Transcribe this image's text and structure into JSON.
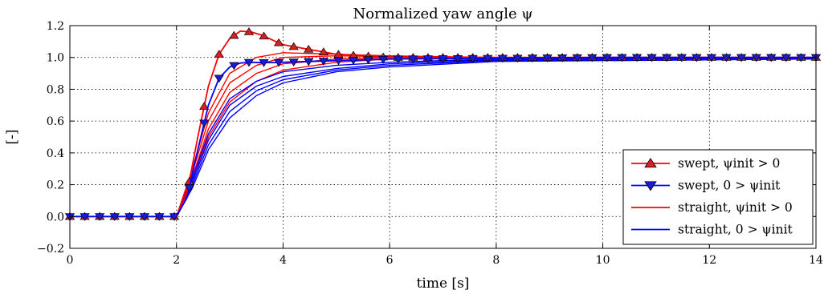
{
  "chart_data": {
    "type": "line",
    "title": "Normalized yaw angle ψ",
    "xlabel": "time [s]",
    "ylabel": "[-]",
    "xlim": [
      0,
      14
    ],
    "ylim": [
      -0.2,
      1.2
    ],
    "x_ticks": [
      0,
      2,
      4,
      6,
      8,
      10,
      12,
      14
    ],
    "y_ticks": [
      -0.2,
      0.0,
      0.2,
      0.4,
      0.6,
      0.8,
      1.0,
      1.2
    ],
    "x_tick_labels": [
      "0",
      "2",
      "4",
      "6",
      "8",
      "10",
      "12",
      "14"
    ],
    "y_tick_labels": [
      "−0.2",
      "0.0",
      "0.2",
      "0.4",
      "0.6",
      "0.8",
      "1.0",
      "1.2"
    ],
    "grid": true,
    "legend_position": "bottom-right",
    "colors": {
      "red": "#ff0000",
      "blue": "#0000ff",
      "red_marker": "#d92020",
      "blue_marker": "#1a1ad9"
    },
    "legend": [
      {
        "label": "swept, ψinit > 0",
        "color": "#ff0000",
        "marker": "triangle-up"
      },
      {
        "label": "swept, 0 > ψinit",
        "color": "#0000ff",
        "marker": "triangle-down"
      },
      {
        "label": "straight, ψinit > 0",
        "color": "#ff0000",
        "marker": "none"
      },
      {
        "label": "straight, 0 > ψinit",
        "color": "#0000ff",
        "marker": "none"
      }
    ],
    "series": [
      {
        "group": "swept, ψinit > 0",
        "color": "#ff0000",
        "marker": "triangle-up",
        "x": [
          0,
          2.0,
          2.2,
          2.4,
          2.6,
          2.8,
          3.0,
          3.2,
          3.4,
          3.6,
          3.8,
          4.0,
          4.5,
          5.0,
          6.0,
          8.0,
          10.0,
          14.0
        ],
        "y": [
          0.0,
          0.0,
          0.15,
          0.5,
          0.82,
          1.02,
          1.12,
          1.165,
          1.16,
          1.14,
          1.11,
          1.08,
          1.05,
          1.02,
          1.0,
          1.0,
          1.0,
          1.0
        ]
      },
      {
        "group": "swept, 0 > ψinit",
        "color": "#0000ff",
        "marker": "triangle-down",
        "x": [
          0,
          2.0,
          2.2,
          2.4,
          2.6,
          2.8,
          3.0,
          3.2,
          3.4,
          3.6,
          3.8,
          4.0,
          4.5,
          5.0,
          6.0,
          8.0,
          10.0,
          14.0
        ],
        "y": [
          0.0,
          0.0,
          0.12,
          0.42,
          0.7,
          0.87,
          0.94,
          0.965,
          0.97,
          0.968,
          0.968,
          0.97,
          0.975,
          0.98,
          0.99,
          0.995,
          1.0,
          1.0
        ]
      },
      {
        "group": "straight, ψinit > 0",
        "color": "#ff0000",
        "marker": "none",
        "x": [
          0,
          2.0,
          2.3,
          2.6,
          3.0,
          3.5,
          4.0,
          5.0,
          6.0,
          8.0,
          14.0
        ],
        "y": [
          0.0,
          0.0,
          0.3,
          0.65,
          0.9,
          1.0,
          1.03,
          1.02,
          1.01,
          1.0,
          1.0
        ]
      },
      {
        "group": "straight, ψinit > 0",
        "color": "#ff0000",
        "marker": "none",
        "x": [
          0,
          2.0,
          2.3,
          2.6,
          3.0,
          3.5,
          4.0,
          5.0,
          6.0,
          8.0,
          14.0
        ],
        "y": [
          0.0,
          0.0,
          0.28,
          0.6,
          0.84,
          0.95,
          1.0,
          1.01,
          1.005,
          1.0,
          1.0
        ]
      },
      {
        "group": "straight, ψinit > 0",
        "color": "#ff0000",
        "marker": "none",
        "x": [
          0,
          2.0,
          2.3,
          2.6,
          3.0,
          3.5,
          4.0,
          5.0,
          6.0,
          8.0,
          14.0
        ],
        "y": [
          0.0,
          0.0,
          0.25,
          0.55,
          0.78,
          0.9,
          0.96,
          0.99,
          1.0,
          1.0,
          1.0
        ]
      },
      {
        "group": "straight, ψinit > 0",
        "color": "#ff0000",
        "marker": "none",
        "x": [
          0,
          2.0,
          2.3,
          2.6,
          3.0,
          3.5,
          4.0,
          5.0,
          6.0,
          8.0,
          14.0
        ],
        "y": [
          0.0,
          0.0,
          0.22,
          0.5,
          0.72,
          0.85,
          0.92,
          0.97,
          0.99,
          1.0,
          1.0
        ]
      },
      {
        "group": "straight, 0 > ψinit",
        "color": "#0000ff",
        "marker": "none",
        "x": [
          0,
          2.0,
          2.3,
          2.6,
          3.0,
          3.5,
          4.0,
          5.0,
          6.0,
          8.0,
          14.0
        ],
        "y": [
          0.0,
          0.0,
          0.24,
          0.52,
          0.74,
          0.85,
          0.91,
          0.95,
          0.97,
          0.99,
          1.0
        ]
      },
      {
        "group": "straight, 0 > ψinit",
        "color": "#0000ff",
        "marker": "none",
        "x": [
          0,
          2.0,
          2.3,
          2.6,
          3.0,
          3.5,
          4.0,
          5.0,
          6.0,
          8.0,
          14.0
        ],
        "y": [
          0.0,
          0.0,
          0.22,
          0.48,
          0.7,
          0.82,
          0.88,
          0.93,
          0.96,
          0.985,
          0.995
        ]
      },
      {
        "group": "straight, 0 > ψinit",
        "color": "#0000ff",
        "marker": "none",
        "x": [
          0,
          2.0,
          2.3,
          2.6,
          3.0,
          3.5,
          4.0,
          5.0,
          6.0,
          8.0,
          14.0
        ],
        "y": [
          0.0,
          0.0,
          0.2,
          0.45,
          0.66,
          0.79,
          0.86,
          0.92,
          0.95,
          0.98,
          0.99
        ]
      },
      {
        "group": "straight, 0 > ψinit",
        "color": "#0000ff",
        "marker": "none",
        "x": [
          0,
          2.0,
          2.3,
          2.6,
          3.0,
          3.5,
          4.0,
          5.0,
          6.0,
          8.0,
          14.0
        ],
        "y": [
          0.0,
          0.0,
          0.18,
          0.42,
          0.62,
          0.76,
          0.84,
          0.91,
          0.94,
          0.975,
          0.99
        ]
      }
    ]
  }
}
